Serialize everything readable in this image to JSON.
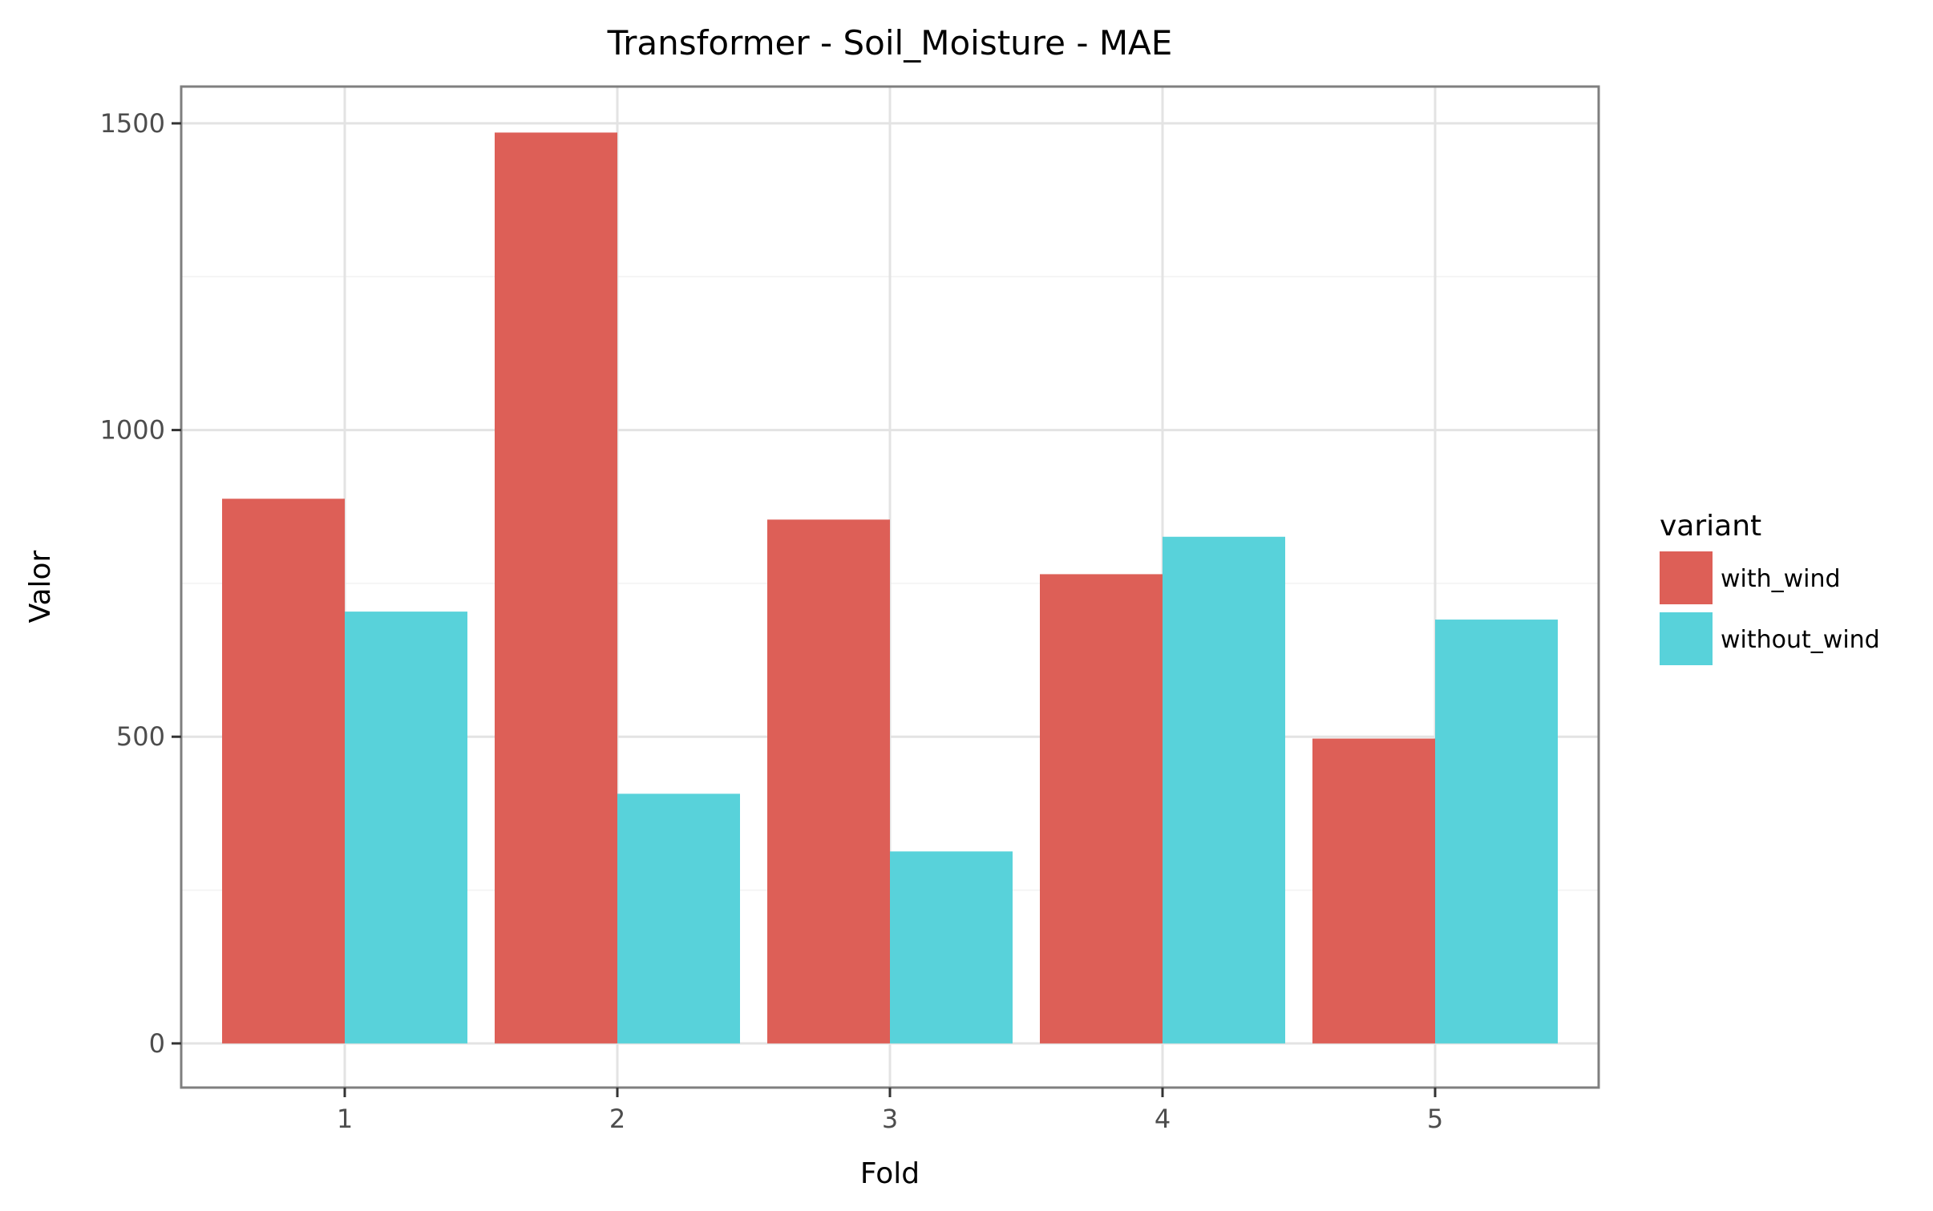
{
  "chart_data": {
    "type": "bar",
    "title": "Transformer - Soil_Moisture - MAE",
    "xlabel": "Fold",
    "ylabel": "Valor",
    "categories": [
      "1",
      "2",
      "3",
      "4",
      "5"
    ],
    "ylim": [
      -72,
      1560
    ],
    "yticks": [
      0,
      500,
      1000,
      1500
    ],
    "grid": true,
    "legend": {
      "title": "variant",
      "placement": "right"
    },
    "series": [
      {
        "name": "with_wind",
        "color": "#dd5f57",
        "values": [
          888,
          1485,
          854,
          765,
          497
        ]
      },
      {
        "name": "without_wind",
        "color": "#58d2da",
        "values": [
          704,
          407,
          313,
          826,
          691
        ]
      }
    ]
  }
}
